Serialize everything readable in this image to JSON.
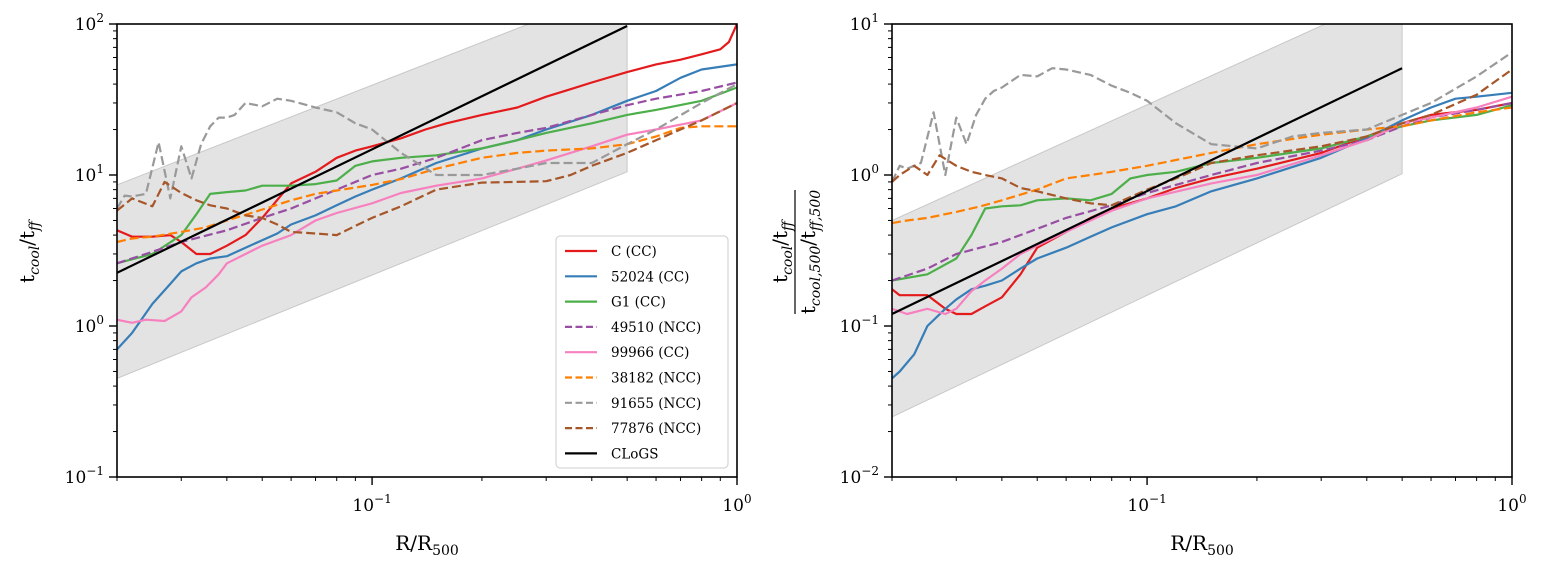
{
  "chart_data": [
    {
      "type": "line",
      "panel": "left",
      "xscale": "log",
      "yscale": "log",
      "xlim": [
        0.02,
        1.0
      ],
      "ylim": [
        0.1,
        100
      ],
      "xlabel": "R/R500",
      "ylabel": "tcool/tff",
      "x_ticks": [
        {
          "base": "10",
          "exp": "−1"
        },
        {
          "base": "10",
          "exp": "0"
        }
      ],
      "y_ticks": [
        {
          "base": "10",
          "exp": "−1"
        },
        {
          "base": "10",
          "exp": "0"
        },
        {
          "base": "10",
          "exp": "1"
        },
        {
          "base": "10",
          "exp": "2"
        }
      ],
      "band": {
        "x": [
          0.02,
          0.5
        ],
        "lower": [
          0.45,
          10.5
        ],
        "upper": [
          8.6,
          180
        ]
      },
      "legend": {
        "position": "lower-right"
      },
      "series": [
        {
          "name": "C (CC)",
          "color": "#e41a1c",
          "dash": "solid",
          "x": [
            0.02,
            0.022,
            0.025,
            0.028,
            0.03,
            0.033,
            0.036,
            0.04,
            0.045,
            0.05,
            0.06,
            0.07,
            0.08,
            0.09,
            0.1,
            0.12,
            0.14,
            0.16,
            0.2,
            0.25,
            0.3,
            0.35,
            0.4,
            0.5,
            0.6,
            0.7,
            0.8,
            0.9,
            0.95,
            1.0
          ],
          "y": [
            4.3,
            3.9,
            3.9,
            4.0,
            3.6,
            3.0,
            3.0,
            3.4,
            4.0,
            5.2,
            8.8,
            10.5,
            13,
            14.5,
            15.5,
            17.5,
            20,
            22,
            25,
            28,
            33,
            37,
            41,
            48,
            54,
            58,
            63,
            68,
            76,
            100
          ]
        },
        {
          "name": "52024 (CC)",
          "color": "#377eb8",
          "dash": "solid",
          "x": [
            0.02,
            0.022,
            0.025,
            0.028,
            0.03,
            0.033,
            0.036,
            0.04,
            0.045,
            0.05,
            0.055,
            0.06,
            0.07,
            0.08,
            0.09,
            0.1,
            0.12,
            0.15,
            0.2,
            0.25,
            0.3,
            0.4,
            0.5,
            0.6,
            0.7,
            0.8,
            1.0
          ],
          "y": [
            0.7,
            0.9,
            1.4,
            1.9,
            2.3,
            2.6,
            2.8,
            2.9,
            3.3,
            3.7,
            4.1,
            4.7,
            5.4,
            6.3,
            7.2,
            8.0,
            9.5,
            12,
            15,
            17,
            20,
            25,
            31,
            36,
            44,
            50,
            54
          ]
        },
        {
          "name": "G1 (CC)",
          "color": "#4daf4a",
          "dash": "solid",
          "x": [
            0.02,
            0.025,
            0.03,
            0.033,
            0.036,
            0.04,
            0.045,
            0.05,
            0.06,
            0.07,
            0.08,
            0.09,
            0.1,
            0.12,
            0.15,
            0.2,
            0.25,
            0.3,
            0.4,
            0.5,
            0.6,
            0.8,
            1.0
          ],
          "y": [
            2.6,
            3.0,
            4.0,
            5.5,
            7.5,
            7.7,
            7.9,
            8.5,
            8.5,
            8.7,
            9.2,
            11.5,
            12.3,
            13,
            13.5,
            15,
            17,
            19,
            22,
            25,
            27,
            31,
            38
          ]
        },
        {
          "name": "49510 (NCC)",
          "color": "#984ea3",
          "dash": "dashed",
          "x": [
            0.02,
            0.025,
            0.03,
            0.04,
            0.05,
            0.06,
            0.07,
            0.08,
            0.1,
            0.12,
            0.15,
            0.2,
            0.25,
            0.3,
            0.4,
            0.5,
            0.6,
            0.8,
            1.0
          ],
          "y": [
            2.6,
            3.1,
            3.6,
            4.3,
            5.2,
            6.0,
            7.0,
            8.0,
            10,
            11,
            13,
            17,
            19,
            20.5,
            25,
            29,
            32,
            36,
            41
          ]
        },
        {
          "name": "99966 (CC)",
          "color": "#f781bf",
          "dash": "solid",
          "x": [
            0.02,
            0.022,
            0.024,
            0.027,
            0.03,
            0.032,
            0.035,
            0.038,
            0.04,
            0.045,
            0.05,
            0.06,
            0.07,
            0.08,
            0.1,
            0.12,
            0.15,
            0.2,
            0.25,
            0.3,
            0.4,
            0.5,
            0.6,
            0.8,
            1.0
          ],
          "y": [
            1.1,
            1.05,
            1.1,
            1.08,
            1.25,
            1.55,
            1.8,
            2.2,
            2.6,
            3.0,
            3.4,
            4.0,
            5.0,
            5.6,
            6.5,
            7.6,
            8.5,
            9.5,
            11,
            12.5,
            15.5,
            18.5,
            20,
            23,
            30
          ]
        },
        {
          "name": "38182 (NCC)",
          "color": "#ff7f00",
          "dash": "dashed",
          "x": [
            0.02,
            0.022,
            0.025,
            0.03,
            0.035,
            0.04,
            0.05,
            0.06,
            0.07,
            0.08,
            0.1,
            0.12,
            0.15,
            0.2,
            0.25,
            0.3,
            0.4,
            0.5,
            0.6,
            0.7,
            0.8,
            1.0
          ],
          "y": [
            3.6,
            3.8,
            3.9,
            4.2,
            4.5,
            5.0,
            5.9,
            6.8,
            7.5,
            7.9,
            8.6,
            9.4,
            11,
            13,
            14,
            14.5,
            15,
            16,
            18,
            20.5,
            21,
            21
          ]
        },
        {
          "name": "91655 (NCC)",
          "color": "#999999",
          "dash": "dashed",
          "x": [
            0.02,
            0.021,
            0.022,
            0.024,
            0.026,
            0.028,
            0.03,
            0.032,
            0.034,
            0.036,
            0.038,
            0.04,
            0.042,
            0.045,
            0.05,
            0.055,
            0.06,
            0.07,
            0.08,
            0.09,
            0.1,
            0.12,
            0.15,
            0.2,
            0.25,
            0.3,
            0.4,
            0.5,
            0.6,
            0.8,
            1.0
          ],
          "y": [
            6,
            7.3,
            7.2,
            7.5,
            16.5,
            7.0,
            15.5,
            9.5,
            16,
            21,
            24,
            24,
            25,
            30,
            28.5,
            32,
            31,
            28,
            26,
            22,
            20,
            14,
            10,
            10,
            11,
            12,
            12,
            16,
            20,
            30,
            40
          ]
        },
        {
          "name": "77876 (NCC)",
          "color": "#a65628",
          "dash": "dashed",
          "x": [
            0.02,
            0.022,
            0.025,
            0.027,
            0.03,
            0.033,
            0.036,
            0.04,
            0.045,
            0.05,
            0.055,
            0.06,
            0.07,
            0.08,
            0.09,
            0.1,
            0.12,
            0.15,
            0.2,
            0.25,
            0.3,
            0.35,
            0.4,
            0.5,
            0.6,
            0.7,
            0.8,
            1.0
          ],
          "y": [
            5.8,
            7.0,
            6.2,
            9.0,
            7.6,
            6.8,
            6.3,
            6.0,
            5.4,
            5.2,
            4.7,
            4.2,
            4.1,
            4.0,
            4.6,
            5.2,
            6.2,
            8.0,
            8.9,
            9.0,
            9.1,
            10,
            11.5,
            14,
            17,
            20,
            23,
            30
          ]
        },
        {
          "name": "CLoGS",
          "color": "#000000",
          "dash": "solid",
          "x": [
            0.02,
            0.5
          ],
          "y": [
            2.25,
            97
          ]
        }
      ]
    },
    {
      "type": "line",
      "panel": "right",
      "xscale": "log",
      "yscale": "log",
      "xlim": [
        0.02,
        1.0
      ],
      "ylim": [
        0.01,
        10
      ],
      "xlabel": "R/R500",
      "ylabel": "(tcool/tff)/(tcool,500/tff,500)",
      "x_ticks": [
        {
          "base": "10",
          "exp": "−1"
        },
        {
          "base": "10",
          "exp": "0"
        }
      ],
      "y_ticks": [
        {
          "base": "10",
          "exp": "−2"
        },
        {
          "base": "10",
          "exp": "−1"
        },
        {
          "base": "10",
          "exp": "0"
        },
        {
          "base": "10",
          "exp": "1"
        }
      ],
      "band": {
        "x": [
          0.02,
          0.5
        ],
        "lower": [
          0.025,
          1.02
        ],
        "upper": [
          0.5,
          17
        ]
      },
      "series": [
        {
          "name": "C (CC)",
          "color": "#e41a1c",
          "dash": "solid",
          "x": [
            0.02,
            0.021,
            0.025,
            0.028,
            0.03,
            0.033,
            0.036,
            0.04,
            0.045,
            0.05,
            0.06,
            0.07,
            0.08,
            0.1,
            0.12,
            0.15,
            0.2,
            0.3,
            0.4,
            0.5,
            0.6,
            0.8,
            1.0
          ],
          "y": [
            0.175,
            0.16,
            0.16,
            0.13,
            0.12,
            0.12,
            0.135,
            0.155,
            0.22,
            0.33,
            0.42,
            0.52,
            0.6,
            0.7,
            0.82,
            0.95,
            1.1,
            1.4,
            1.8,
            2.2,
            2.5,
            2.7,
            3.0
          ]
        },
        {
          "name": "52024 (CC)",
          "color": "#377eb8",
          "dash": "solid",
          "x": [
            0.02,
            0.021,
            0.023,
            0.025,
            0.028,
            0.03,
            0.033,
            0.036,
            0.04,
            0.045,
            0.05,
            0.06,
            0.07,
            0.08,
            0.1,
            0.12,
            0.15,
            0.2,
            0.3,
            0.4,
            0.5,
            0.6,
            0.7,
            0.8,
            1.0
          ],
          "y": [
            0.045,
            0.05,
            0.065,
            0.1,
            0.13,
            0.15,
            0.175,
            0.185,
            0.2,
            0.24,
            0.28,
            0.33,
            0.39,
            0.45,
            0.55,
            0.62,
            0.78,
            0.95,
            1.3,
            1.75,
            2.3,
            2.8,
            3.2,
            3.3,
            3.5
          ]
        },
        {
          "name": "G1 (CC)",
          "color": "#4daf4a",
          "dash": "solid",
          "x": [
            0.02,
            0.025,
            0.03,
            0.033,
            0.036,
            0.04,
            0.045,
            0.05,
            0.06,
            0.07,
            0.08,
            0.09,
            0.1,
            0.12,
            0.15,
            0.2,
            0.3,
            0.4,
            0.5,
            0.6,
            0.8,
            1.0
          ],
          "y": [
            0.2,
            0.22,
            0.28,
            0.4,
            0.6,
            0.62,
            0.63,
            0.68,
            0.7,
            0.68,
            0.75,
            0.95,
            1.0,
            1.05,
            1.2,
            1.3,
            1.5,
            1.8,
            2.1,
            2.3,
            2.5,
            2.9
          ]
        },
        {
          "name": "49510 (NCC)",
          "color": "#984ea3",
          "dash": "dashed",
          "x": [
            0.02,
            0.025,
            0.03,
            0.04,
            0.05,
            0.06,
            0.08,
            0.1,
            0.15,
            0.2,
            0.3,
            0.4,
            0.5,
            0.6,
            0.8,
            1.0
          ],
          "y": [
            0.2,
            0.24,
            0.3,
            0.36,
            0.44,
            0.52,
            0.63,
            0.76,
            1.0,
            1.2,
            1.45,
            1.7,
            2.1,
            2.4,
            2.7,
            3.0
          ]
        },
        {
          "name": "99966 (CC)",
          "color": "#f781bf",
          "dash": "solid",
          "x": [
            0.02,
            0.022,
            0.025,
            0.028,
            0.03,
            0.033,
            0.036,
            0.04,
            0.045,
            0.05,
            0.06,
            0.07,
            0.08,
            0.1,
            0.15,
            0.2,
            0.3,
            0.4,
            0.5,
            0.6,
            0.8,
            1.0
          ],
          "y": [
            0.13,
            0.12,
            0.13,
            0.12,
            0.13,
            0.17,
            0.2,
            0.24,
            0.3,
            0.34,
            0.42,
            0.5,
            0.58,
            0.7,
            0.88,
            1.0,
            1.35,
            1.7,
            2.2,
            2.4,
            2.8,
            3.3
          ]
        },
        {
          "name": "38182 (NCC)",
          "color": "#ff7f00",
          "dash": "dashed",
          "x": [
            0.02,
            0.022,
            0.025,
            0.03,
            0.035,
            0.04,
            0.05,
            0.06,
            0.07,
            0.08,
            0.1,
            0.15,
            0.2,
            0.3,
            0.4,
            0.5,
            0.6,
            0.8,
            1.0
          ],
          "y": [
            0.48,
            0.5,
            0.52,
            0.57,
            0.62,
            0.68,
            0.8,
            0.95,
            1.0,
            1.05,
            1.15,
            1.4,
            1.6,
            1.85,
            2.0,
            2.1,
            2.3,
            2.6,
            2.8
          ]
        },
        {
          "name": "91655 (NCC)",
          "color": "#999999",
          "dash": "dashed",
          "x": [
            0.02,
            0.021,
            0.022,
            0.024,
            0.026,
            0.028,
            0.03,
            0.032,
            0.034,
            0.036,
            0.038,
            0.04,
            0.045,
            0.05,
            0.055,
            0.06,
            0.07,
            0.08,
            0.09,
            0.1,
            0.12,
            0.15,
            0.2,
            0.25,
            0.3,
            0.4,
            0.5,
            0.6,
            0.8,
            1.0
          ],
          "y": [
            0.9,
            1.15,
            1.1,
            1.2,
            2.6,
            1.0,
            2.4,
            1.6,
            2.5,
            3.2,
            3.6,
            3.8,
            4.6,
            4.5,
            5.1,
            5.0,
            4.6,
            3.9,
            3.5,
            3.1,
            2.2,
            1.6,
            1.5,
            1.8,
            1.9,
            2.0,
            2.5,
            3.0,
            4.5,
            6.5
          ]
        },
        {
          "name": "77876 (NCC)",
          "color": "#a65628",
          "dash": "dashed",
          "x": [
            0.02,
            0.021,
            0.023,
            0.025,
            0.027,
            0.03,
            0.033,
            0.036,
            0.04,
            0.045,
            0.05,
            0.06,
            0.07,
            0.08,
            0.1,
            0.12,
            0.15,
            0.2,
            0.3,
            0.4,
            0.5,
            0.6,
            0.8,
            1.0
          ],
          "y": [
            0.9,
            1.0,
            1.15,
            1.0,
            1.35,
            1.15,
            1.05,
            1.0,
            0.95,
            0.82,
            0.78,
            0.7,
            0.65,
            0.63,
            0.8,
            0.95,
            1.2,
            1.35,
            1.55,
            1.8,
            2.2,
            2.5,
            3.4,
            5.0
          ]
        },
        {
          "name": "CLoGS",
          "color": "#000000",
          "dash": "solid",
          "x": [
            0.02,
            0.5
          ],
          "y": [
            0.12,
            5.1
          ]
        }
      ]
    }
  ]
}
